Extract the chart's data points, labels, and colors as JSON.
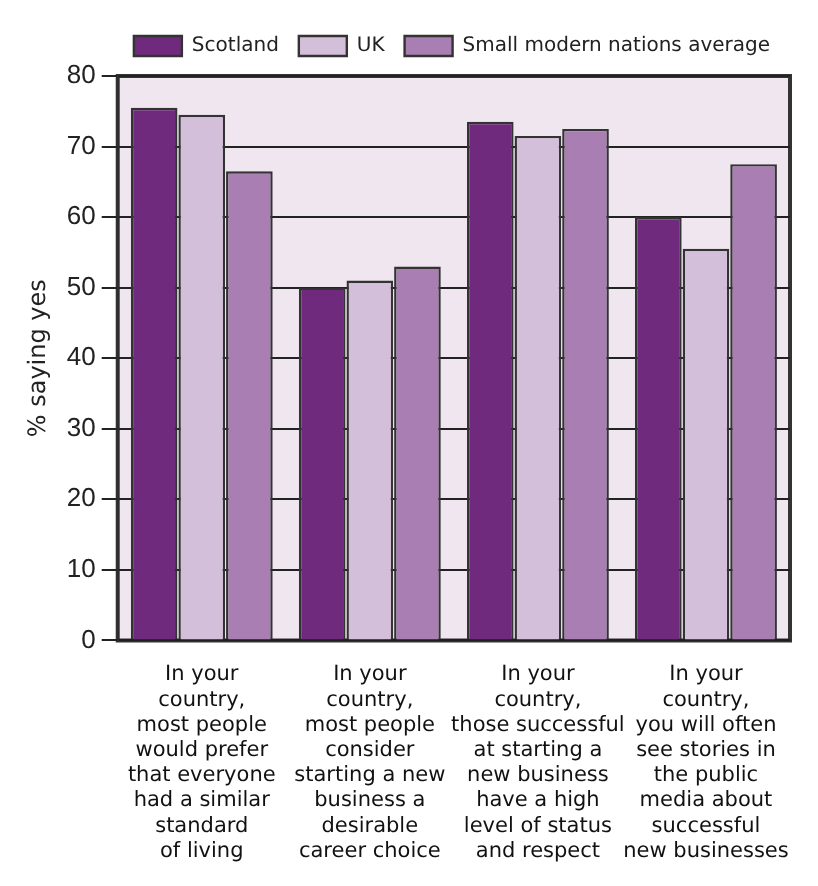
{
  "chart_data": {
    "type": "bar",
    "ylabel": "% saying yes",
    "categories": [
      "In your\ncountry,\nmost people\nwould prefer\nthat everyone\nhad a similar\nstandard\nof living",
      "In your\ncountry,\nmost people\nconsider\nstarting a new\nbusiness a\ndesirable\ncareer choice",
      "In your\ncountry,\nthose successful\nat starting a\nnew business\nhave a high\nlevel of status\nand respect",
      "In your\ncountry,\nyou will often\nsee stories in\nthe public\nmedia about\nsuccessful\nnew businesses"
    ],
    "series": [
      {
        "name": "Scotland",
        "color": "#6f2a7e",
        "values": [
          75.5,
          50,
          73.5,
          60
        ]
      },
      {
        "name": "UK",
        "color": "#d4bfdb",
        "values": [
          74.5,
          51,
          71.5,
          55.5
        ]
      },
      {
        "name": "Small modern nations average",
        "color": "#a97fb3",
        "values": [
          66.5,
          53,
          72.5,
          67.5
        ]
      }
    ],
    "ylim": [
      0,
      80
    ],
    "yticks": [
      0,
      10,
      20,
      30,
      40,
      50,
      60,
      70,
      80
    ],
    "grid": "y",
    "legend": "top right"
  }
}
